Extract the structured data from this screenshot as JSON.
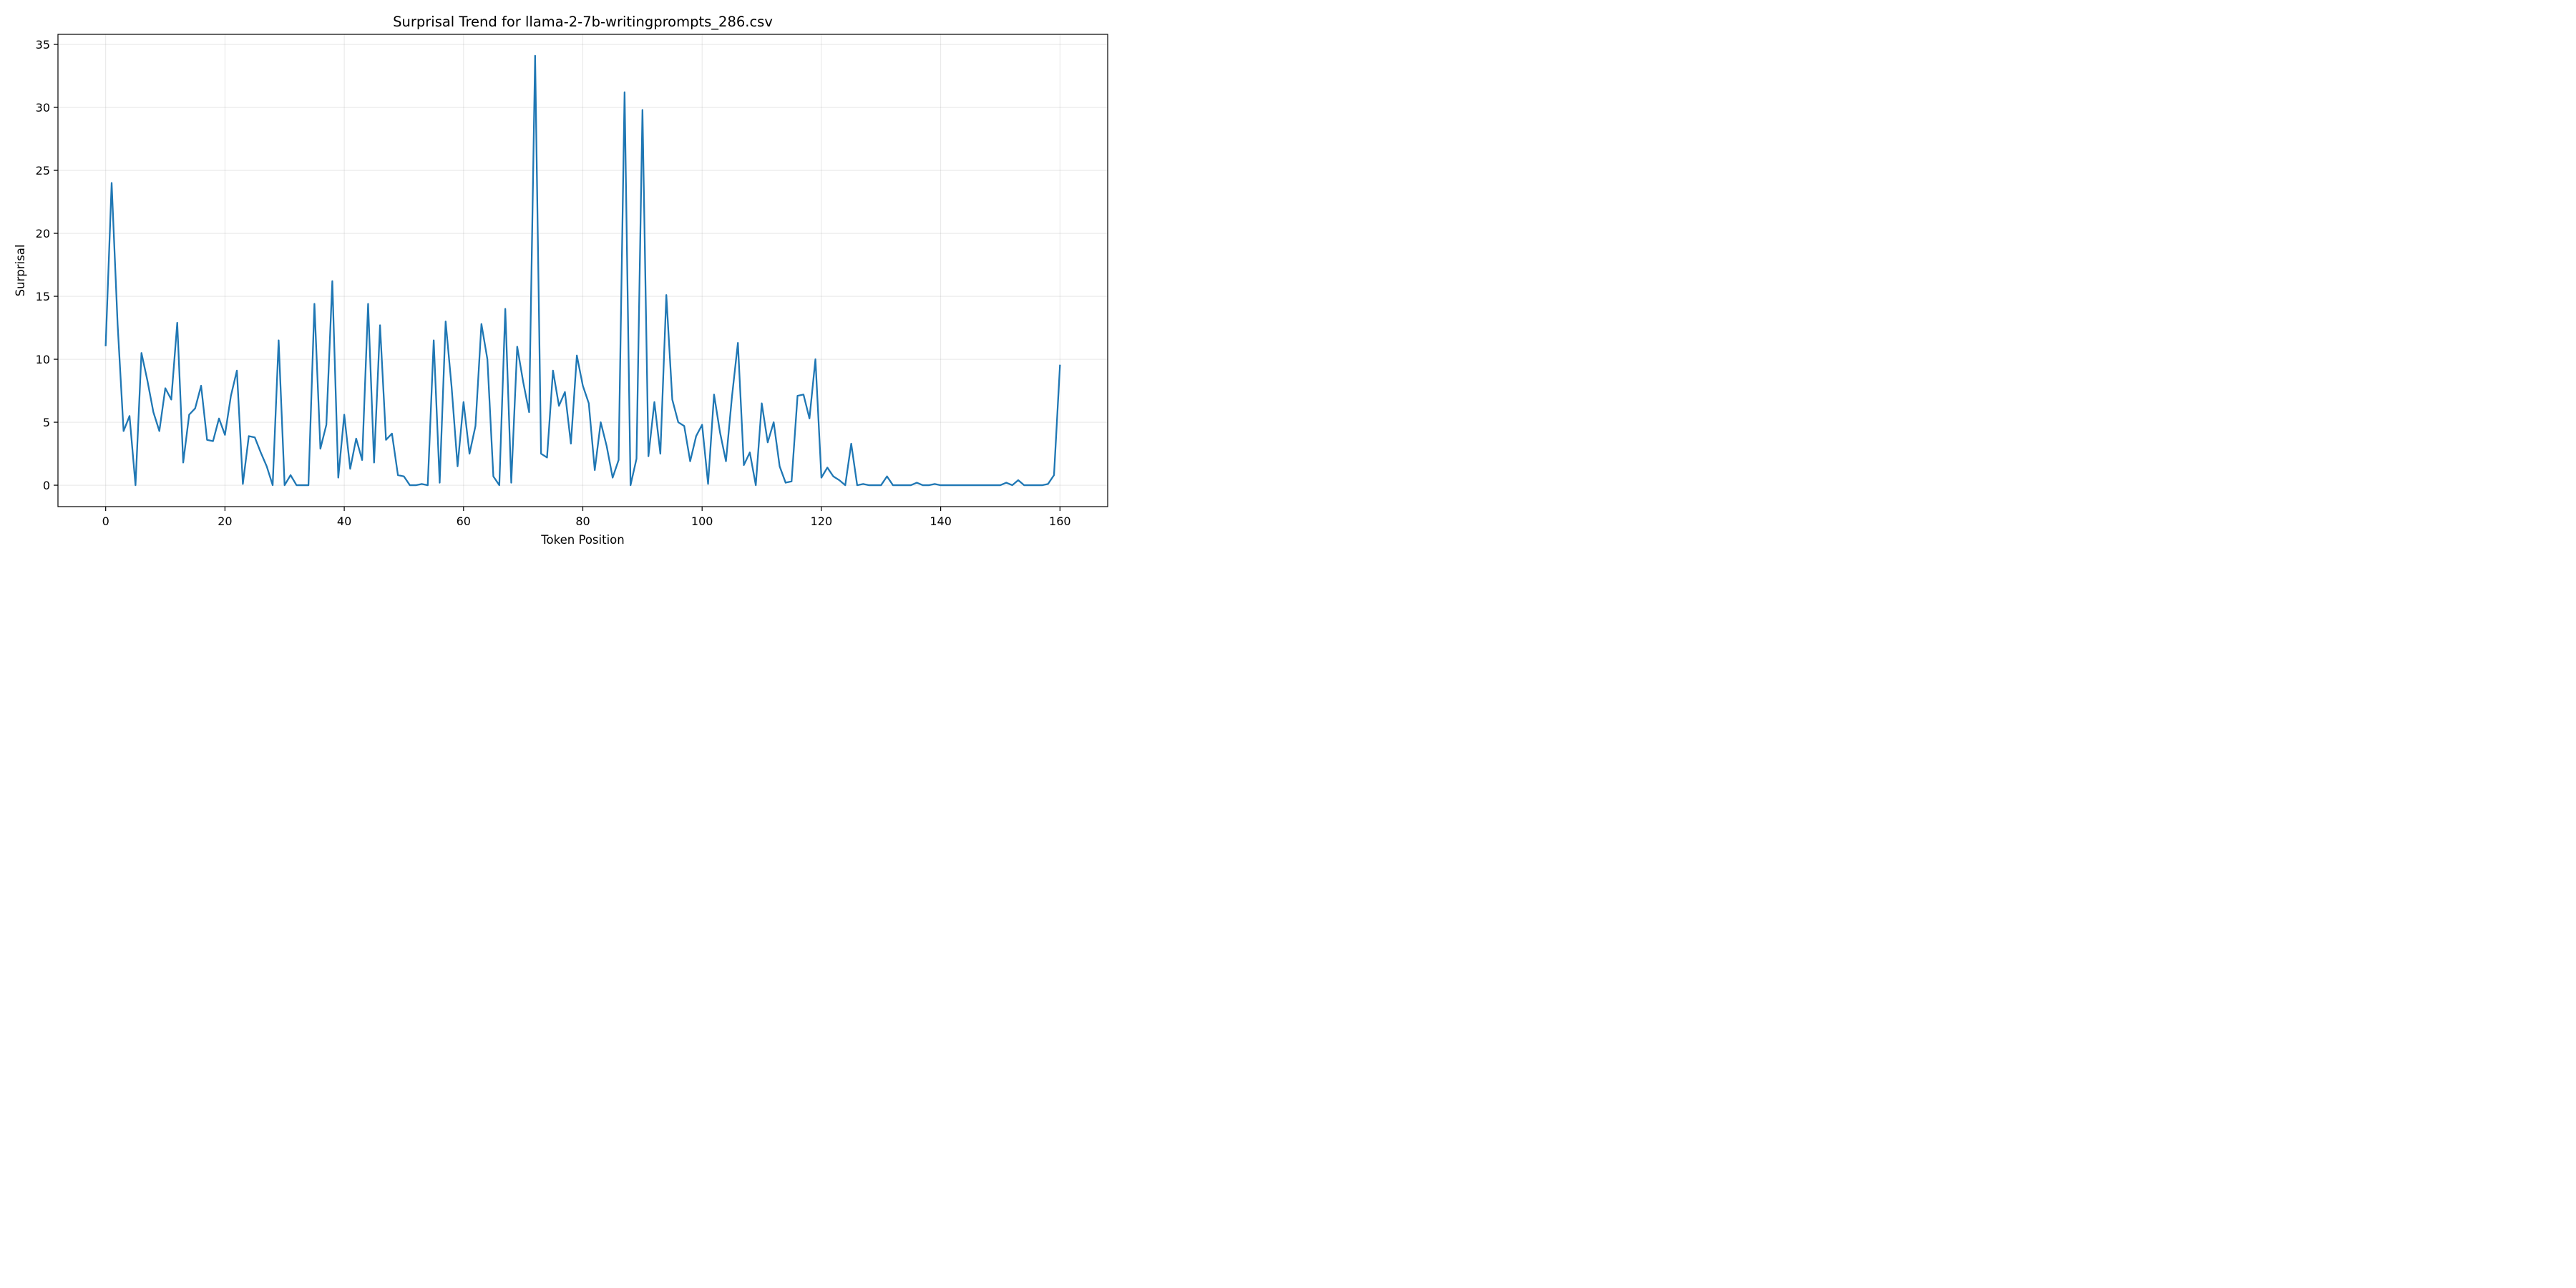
{
  "chart_data": {
    "type": "line",
    "title": "Surprisal Trend for llama-2-7b-writingprompts_286.csv",
    "xlabel": "Token Position",
    "ylabel": "Surprisal",
    "xlim": [
      -8,
      168
    ],
    "ylim": [
      -1.7,
      35.8
    ],
    "xticks": [
      0,
      20,
      40,
      60,
      80,
      100,
      120,
      140,
      160
    ],
    "yticks": [
      0,
      5,
      10,
      15,
      20,
      25,
      30,
      35
    ],
    "grid": true,
    "line_color": "#1f77b4",
    "series": [
      {
        "values": [
          11.1,
          24.0,
          12.8,
          4.3,
          5.5,
          0.0,
          10.5,
          8.3,
          5.8,
          4.3,
          7.7,
          6.8,
          12.9,
          1.8,
          5.6,
          6.1,
          7.9,
          3.6,
          3.5,
          5.3,
          4.0,
          7.1,
          9.1,
          0.1,
          3.9,
          3.8,
          2.6,
          1.5,
          0.0,
          11.5,
          0.0,
          0.8,
          0.0,
          0.0,
          0.0,
          14.4,
          2.9,
          4.8,
          16.2,
          0.6,
          5.6,
          1.3,
          3.7,
          2.0,
          14.4,
          1.8,
          12.7,
          3.6,
          4.1,
          0.8,
          0.7,
          0.0,
          0.0,
          0.1,
          0.0,
          11.5,
          0.2,
          13.0,
          7.8,
          1.5,
          6.6,
          2.5,
          4.7,
          12.8,
          10.0,
          0.7,
          0.0,
          14.0,
          0.2,
          11.0,
          8.2,
          5.8,
          34.1,
          2.5,
          2.2,
          9.1,
          6.3,
          7.4,
          3.3,
          10.3,
          7.9,
          6.5,
          1.2,
          5.0,
          3.1,
          0.6,
          2.0,
          31.2,
          0.0,
          2.1,
          29.8,
          2.3,
          6.6,
          2.5,
          15.1,
          6.8,
          5.0,
          4.7,
          1.9,
          3.9,
          4.8,
          0.1,
          7.2,
          4.2,
          1.9,
          7.0,
          11.3,
          1.6,
          2.6,
          0.0,
          6.5,
          3.4,
          5.0,
          1.5,
          0.2,
          0.3,
          7.1,
          7.2,
          5.3,
          10.0,
          0.6,
          1.4,
          0.7,
          0.4,
          0.0,
          3.3,
          0.0,
          0.1,
          0.0,
          0.0,
          0.0,
          0.7,
          0.0,
          0.0,
          0.0,
          0.0,
          0.2,
          0.0,
          0.0,
          0.1,
          0.0,
          0.0,
          0.0,
          0.0,
          0.0,
          0.0,
          0.0,
          0.0,
          0.0,
          0.0,
          0.0,
          0.2,
          0.0,
          0.4,
          0.0,
          0.0,
          0.0,
          0.0,
          0.1,
          0.8,
          9.5
        ]
      }
    ]
  }
}
